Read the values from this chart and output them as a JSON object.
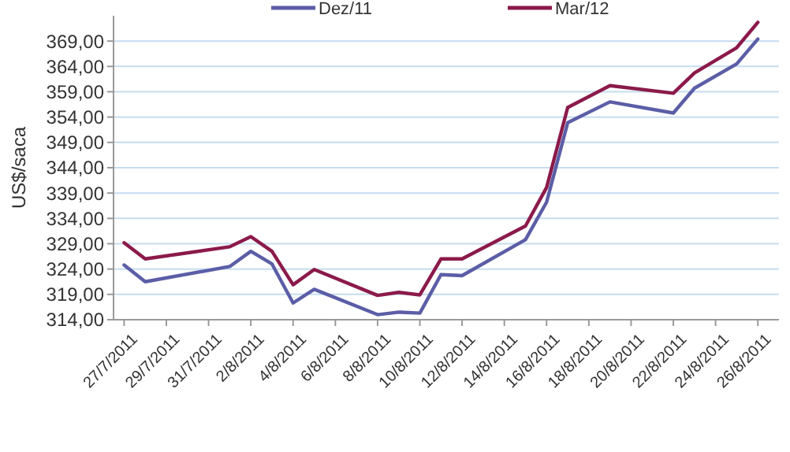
{
  "chart_data": {
    "type": "line",
    "ylabel": "US$/saca",
    "x": [
      "2011-07-27",
      "2011-07-28",
      "2011-08-01",
      "2011-08-02",
      "2011-08-03",
      "2011-08-04",
      "2011-08-05",
      "2011-08-08",
      "2011-08-09",
      "2011-08-10",
      "2011-08-11",
      "2011-08-12",
      "2011-08-15",
      "2011-08-16",
      "2011-08-17",
      "2011-08-19",
      "2011-08-22",
      "2011-08-23",
      "2011-08-25",
      "2011-08-26"
    ],
    "series": [
      {
        "name": "Dez/11",
        "color": "#5b5ea6",
        "values": [
          324.8,
          321.5,
          324.5,
          327.5,
          325,
          317.3,
          320,
          315,
          315.5,
          315.3,
          322.9,
          322.7,
          329.8,
          337.2,
          352.9,
          357,
          354.8,
          359.7,
          364.5,
          369.4
        ]
      },
      {
        "name": "Mar/12",
        "color": "#8b1a4a",
        "values": [
          329.2,
          326,
          328.4,
          330.4,
          327.5,
          320.9,
          323.9,
          318.8,
          319.4,
          318.9,
          326,
          326,
          332.5,
          340.1,
          355.9,
          360.2,
          358.7,
          362.7,
          367.7,
          372.7
        ]
      }
    ],
    "xlim": [
      "2011-07-26T12:00",
      "2011-08-27"
    ],
    "xticks": [
      {
        "value": "2011-07-27",
        "label": "27/7/2011"
      },
      {
        "value": "2011-07-29",
        "label": "29/7/2011"
      },
      {
        "value": "2011-07-31",
        "label": "31/7/2011"
      },
      {
        "value": "2011-08-02",
        "label": "2/8/2011"
      },
      {
        "value": "2011-08-04",
        "label": "4/8/2011"
      },
      {
        "value": "2011-08-06",
        "label": "6/8/2011"
      },
      {
        "value": "2011-08-08",
        "label": "8/8/2011"
      },
      {
        "value": "2011-08-10",
        "label": "10/8/2011"
      },
      {
        "value": "2011-08-12",
        "label": "12/8/2011"
      },
      {
        "value": "2011-08-14",
        "label": "14/8/2011"
      },
      {
        "value": "2011-08-16",
        "label": "16/8/2011"
      },
      {
        "value": "2011-08-18",
        "label": "18/8/2011"
      },
      {
        "value": "2011-08-20",
        "label": "20/8/2011"
      },
      {
        "value": "2011-08-22",
        "label": "22/8/2011"
      },
      {
        "value": "2011-08-24",
        "label": "24/8/2011"
      },
      {
        "value": "2011-08-26",
        "label": "26/8/2011"
      }
    ],
    "ylim": [
      314,
      374
    ],
    "yticks": [
      {
        "value": 314,
        "label": "314,00"
      },
      {
        "value": 319,
        "label": "319,00"
      },
      {
        "value": 324,
        "label": "324,00"
      },
      {
        "value": 329,
        "label": "329,00"
      },
      {
        "value": 334,
        "label": "334,00"
      },
      {
        "value": 339,
        "label": "339,00"
      },
      {
        "value": 344,
        "label": "344,00"
      },
      {
        "value": 349,
        "label": "349,00"
      },
      {
        "value": 354,
        "label": "354,00"
      },
      {
        "value": 359,
        "label": "359,00"
      },
      {
        "value": 364,
        "label": "364,00"
      },
      {
        "value": 369,
        "label": "369,00"
      }
    ],
    "grid": "y",
    "legend": "top",
    "marker": "none",
    "line_style": "solid"
  }
}
